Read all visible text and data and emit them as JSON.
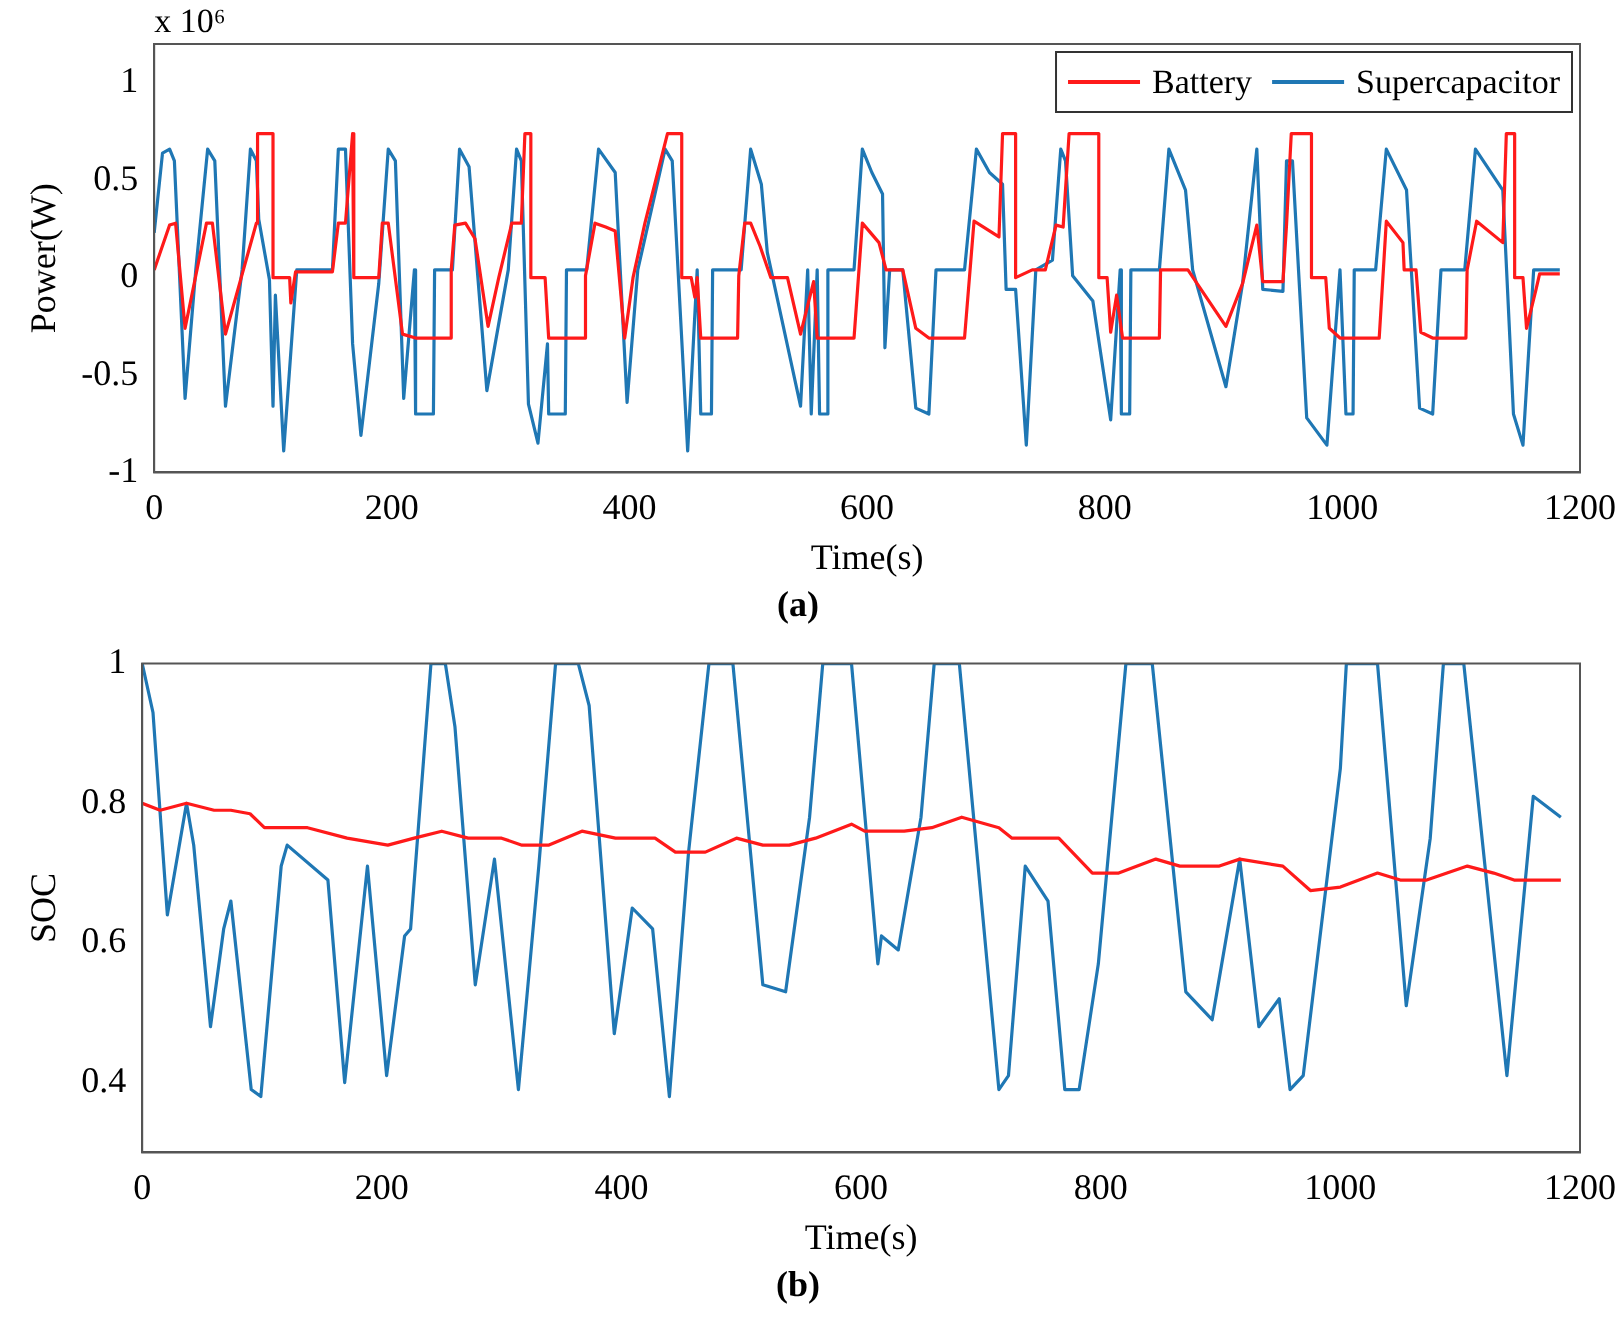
{
  "chart_data": [
    {
      "type": "line",
      "title": "(a)",
      "xlabel": "Time(s)",
      "ylabel": "Power(W)",
      "annotations": [
        "x 10⁶"
      ],
      "xlim": [
        0,
        1200
      ],
      "xticks": [
        0,
        200,
        400,
        600,
        800,
        1000,
        1200
      ],
      "ylim": [
        -1,
        1.2
      ],
      "yticks": [
        -1,
        -0.5,
        0,
        0.5,
        1
      ],
      "grid": false,
      "legend": "top right",
      "marker": "none",
      "line_style": "solid",
      "series": [
        {
          "name": "Battery",
          "color": "#ff1a1a",
          "x": [
            0,
            13,
            18,
            26,
            44,
            49,
            60,
            86,
            87,
            100,
            100,
            114,
            115,
            119,
            150,
            155,
            161,
            167,
            168,
            168,
            189,
            192,
            197,
            209,
            220,
            250,
            250,
            253,
            262,
            270,
            281,
            290,
            301,
            309,
            312,
            317,
            317,
            329,
            332,
            362,
            363,
            371,
            380,
            388,
            396,
            403,
            413,
            432,
            444,
            444,
            452,
            455,
            457,
            460,
            491,
            492,
            497,
            502,
            510,
            519,
            533,
            544,
            555,
            558,
            589,
            596,
            610,
            616,
            630,
            641,
            652,
            682,
            690,
            711,
            714,
            725,
            725,
            739,
            750,
            759,
            765,
            770,
            795,
            795,
            802,
            805,
            810,
            815,
            846,
            847,
            870,
            902,
            916,
            928,
            933,
            950,
            953,
            957,
            974,
            974,
            986,
            989,
            998,
            1031,
            1037,
            1051,
            1052,
            1062,
            1066,
            1076,
            1104,
            1105,
            1113,
            1135,
            1138,
            1145,
            1145,
            1152,
            1155,
            1163,
            1166,
            1183
          ],
          "values": [
            0.04,
            0.27,
            0.28,
            -0.26,
            0.28,
            0.28,
            -0.29,
            0.28,
            0.74,
            0.74,
            0,
            0,
            -0.13,
            0.03,
            0.03,
            0.28,
            0.28,
            0.74,
            0.74,
            0,
            0,
            0.28,
            0.28,
            -0.29,
            -0.31,
            -0.31,
            0.04,
            0.27,
            0.28,
            0.2,
            -0.25,
            0,
            0.28,
            0.28,
            0.74,
            0.74,
            0,
            0,
            -0.31,
            -0.31,
            0.01,
            0.28,
            0.26,
            0.24,
            -0.31,
            0,
            0.28,
            0.74,
            0.74,
            0,
            0,
            -0.1,
            0,
            -0.31,
            -0.31,
            0.01,
            0.28,
            0.28,
            0.16,
            0,
            0,
            -0.29,
            -0.02,
            -0.31,
            -0.31,
            0.28,
            0.18,
            0.04,
            0.04,
            -0.26,
            -0.31,
            -0.31,
            0.29,
            0.21,
            0.74,
            0.74,
            0,
            0.04,
            0.04,
            0.27,
            0.26,
            0.74,
            0.74,
            0,
            0,
            -0.28,
            -0.09,
            -0.31,
            -0.31,
            0.04,
            0.04,
            -0.25,
            -0.03,
            0.27,
            -0.02,
            -0.02,
            0.27,
            0.74,
            0.74,
            0,
            0,
            -0.26,
            -0.31,
            -0.31,
            0.29,
            0.18,
            0.04,
            0.04,
            -0.28,
            -0.31,
            -0.31,
            0.04,
            0.29,
            0.18,
            0.74,
            0.74,
            0,
            0,
            -0.26,
            -0.06,
            0.02,
            0.02
          ]
        },
        {
          "name": "Supercapacitor",
          "color": "#1f77b4",
          "x": [
            0,
            7,
            13,
            17,
            26,
            35,
            45,
            51,
            60,
            74,
            81,
            86,
            88,
            97,
            100,
            102,
            109,
            120,
            150,
            155,
            161,
            167,
            174,
            189,
            197,
            203,
            210,
            219,
            220,
            235,
            236,
            251,
            257,
            265,
            280,
            298,
            305,
            309,
            315,
            323,
            331,
            332,
            346,
            347,
            364,
            374,
            388,
            398,
            407,
            430,
            436,
            449,
            457,
            460,
            469,
            470,
            494,
            502,
            511,
            516,
            544,
            550,
            553,
            558,
            560,
            566,
            567,
            589,
            596,
            604,
            613,
            615,
            619,
            630,
            641,
            652,
            658,
            682,
            692,
            703,
            714,
            717,
            725,
            734,
            742,
            756,
            763,
            767,
            773,
            790,
            805,
            813,
            814,
            821,
            822,
            846,
            854,
            868,
            874,
            902,
            916,
            928,
            933,
            950,
            953,
            958,
            970,
            987,
            998,
            1003,
            1009,
            1010,
            1028,
            1037,
            1054,
            1065,
            1076,
            1083,
            1103,
            1112,
            1135,
            1144,
            1152,
            1161,
            1183
          ],
          "values": [
            0.23,
            0.64,
            0.66,
            0.6,
            -0.62,
            0.04,
            0.66,
            0.6,
            -0.66,
            0.04,
            0.66,
            0.6,
            0.3,
            -0.01,
            -0.66,
            -0.09,
            -0.89,
            0.04,
            0.04,
            0.66,
            0.66,
            -0.34,
            -0.81,
            -0.03,
            0.66,
            0.6,
            -0.62,
            0.04,
            -0.7,
            -0.7,
            0.04,
            0.04,
            0.66,
            0.57,
            -0.58,
            0.04,
            0.66,
            0.6,
            -0.65,
            -0.85,
            -0.34,
            -0.7,
            -0.7,
            0.04,
            0.04,
            0.66,
            0.54,
            -0.64,
            0.04,
            0.66,
            0.6,
            -0.89,
            0.04,
            -0.7,
            -0.7,
            0.04,
            0.04,
            0.66,
            0.48,
            0.13,
            -0.66,
            0.04,
            -0.7,
            0.04,
            -0.7,
            -0.7,
            0.04,
            0.04,
            0.66,
            0.54,
            0.43,
            -0.36,
            0.04,
            0.04,
            -0.67,
            -0.7,
            0.04,
            0.04,
            0.66,
            0.54,
            0.48,
            -0.06,
            -0.06,
            -0.86,
            0.04,
            0.09,
            0.66,
            0.6,
            0.01,
            -0.12,
            -0.73,
            0.04,
            -0.7,
            -0.7,
            0.04,
            0.04,
            0.66,
            0.45,
            0.04,
            -0.56,
            -0.03,
            0.66,
            -0.06,
            -0.07,
            0.6,
            0.6,
            -0.72,
            -0.86,
            0.04,
            -0.7,
            -0.7,
            0.04,
            0.04,
            0.66,
            0.45,
            -0.67,
            -0.7,
            0.04,
            0.04,
            0.66,
            0.45,
            -0.7,
            -0.86,
            0.04,
            0.04
          ]
        }
      ]
    },
    {
      "type": "line",
      "title": "(b)",
      "xlabel": "Time(s)",
      "ylabel": "SOC",
      "xlim": [
        0,
        1200
      ],
      "xticks": [
        0,
        200,
        400,
        600,
        800,
        1000,
        1200
      ],
      "ylim": [
        0.3,
        1
      ],
      "yticks": [
        0.4,
        0.6,
        0.8,
        1
      ],
      "grid": false,
      "marker": "none",
      "line_style": "solid",
      "series": [
        {
          "color": "#ff1a1a",
          "x": [
            0,
            15,
            37,
            60,
            74,
            90,
            102,
            138,
            171,
            205,
            227,
            250,
            272,
            300,
            317,
            339,
            367,
            395,
            428,
            445,
            470,
            496,
            518,
            540,
            562,
            592,
            603,
            636,
            659,
            684,
            715,
            726,
            765,
            793,
            815,
            846,
            866,
            899,
            916,
            952,
            975,
            1000,
            1031,
            1050,
            1072,
            1106,
            1128,
            1145,
            1184
          ],
          "values": [
            0.8,
            0.79,
            0.8,
            0.79,
            0.79,
            0.785,
            0.765,
            0.765,
            0.75,
            0.74,
            0.75,
            0.76,
            0.75,
            0.75,
            0.74,
            0.74,
            0.76,
            0.75,
            0.75,
            0.73,
            0.73,
            0.75,
            0.74,
            0.74,
            0.75,
            0.77,
            0.76,
            0.76,
            0.765,
            0.78,
            0.765,
            0.75,
            0.75,
            0.7,
            0.7,
            0.72,
            0.71,
            0.71,
            0.72,
            0.71,
            0.675,
            0.68,
            0.7,
            0.69,
            0.69,
            0.71,
            0.7,
            0.69,
            0.69
          ]
        },
        {
          "color": "#1f77b4",
          "x": [
            0,
            9,
            21,
            37,
            43,
            57,
            68,
            74,
            91,
            99,
            116,
            121,
            155,
            169,
            188,
            204,
            219,
            224,
            241,
            253,
            261,
            278,
            294,
            314,
            331,
            345,
            364,
            373,
            394,
            409,
            426,
            440,
            456,
            473,
            493,
            518,
            537,
            557,
            568,
            592,
            614,
            617,
            631,
            650,
            661,
            682,
            715,
            723,
            737,
            756,
            770,
            782,
            798,
            821,
            843,
            871,
            893,
            916,
            932,
            949,
            958,
            969,
            1000,
            1005,
            1031,
            1055,
            1075,
            1086,
            1103,
            1139,
            1161,
            1184
          ],
          "values": [
            1,
            0.93,
            0.64,
            0.8,
            0.74,
            0.48,
            0.62,
            0.66,
            0.39,
            0.38,
            0.71,
            0.74,
            0.69,
            0.4,
            0.71,
            0.41,
            0.61,
            0.62,
            1,
            1,
            0.91,
            0.54,
            0.72,
            0.39,
            0.71,
            1,
            1,
            0.94,
            0.47,
            0.65,
            0.62,
            0.38,
            0.73,
            1,
            1,
            0.54,
            0.53,
            0.78,
            1,
            1,
            0.57,
            0.61,
            0.59,
            0.78,
            1,
            1,
            0.39,
            0.41,
            0.71,
            0.66,
            0.39,
            0.39,
            0.57,
            1,
            1,
            0.53,
            0.49,
            0.72,
            0.48,
            0.52,
            0.39,
            0.41,
            0.85,
            1,
            1,
            0.51,
            0.75,
            1,
            1,
            0.41,
            0.81,
            0.78
          ]
        }
      ]
    }
  ]
}
